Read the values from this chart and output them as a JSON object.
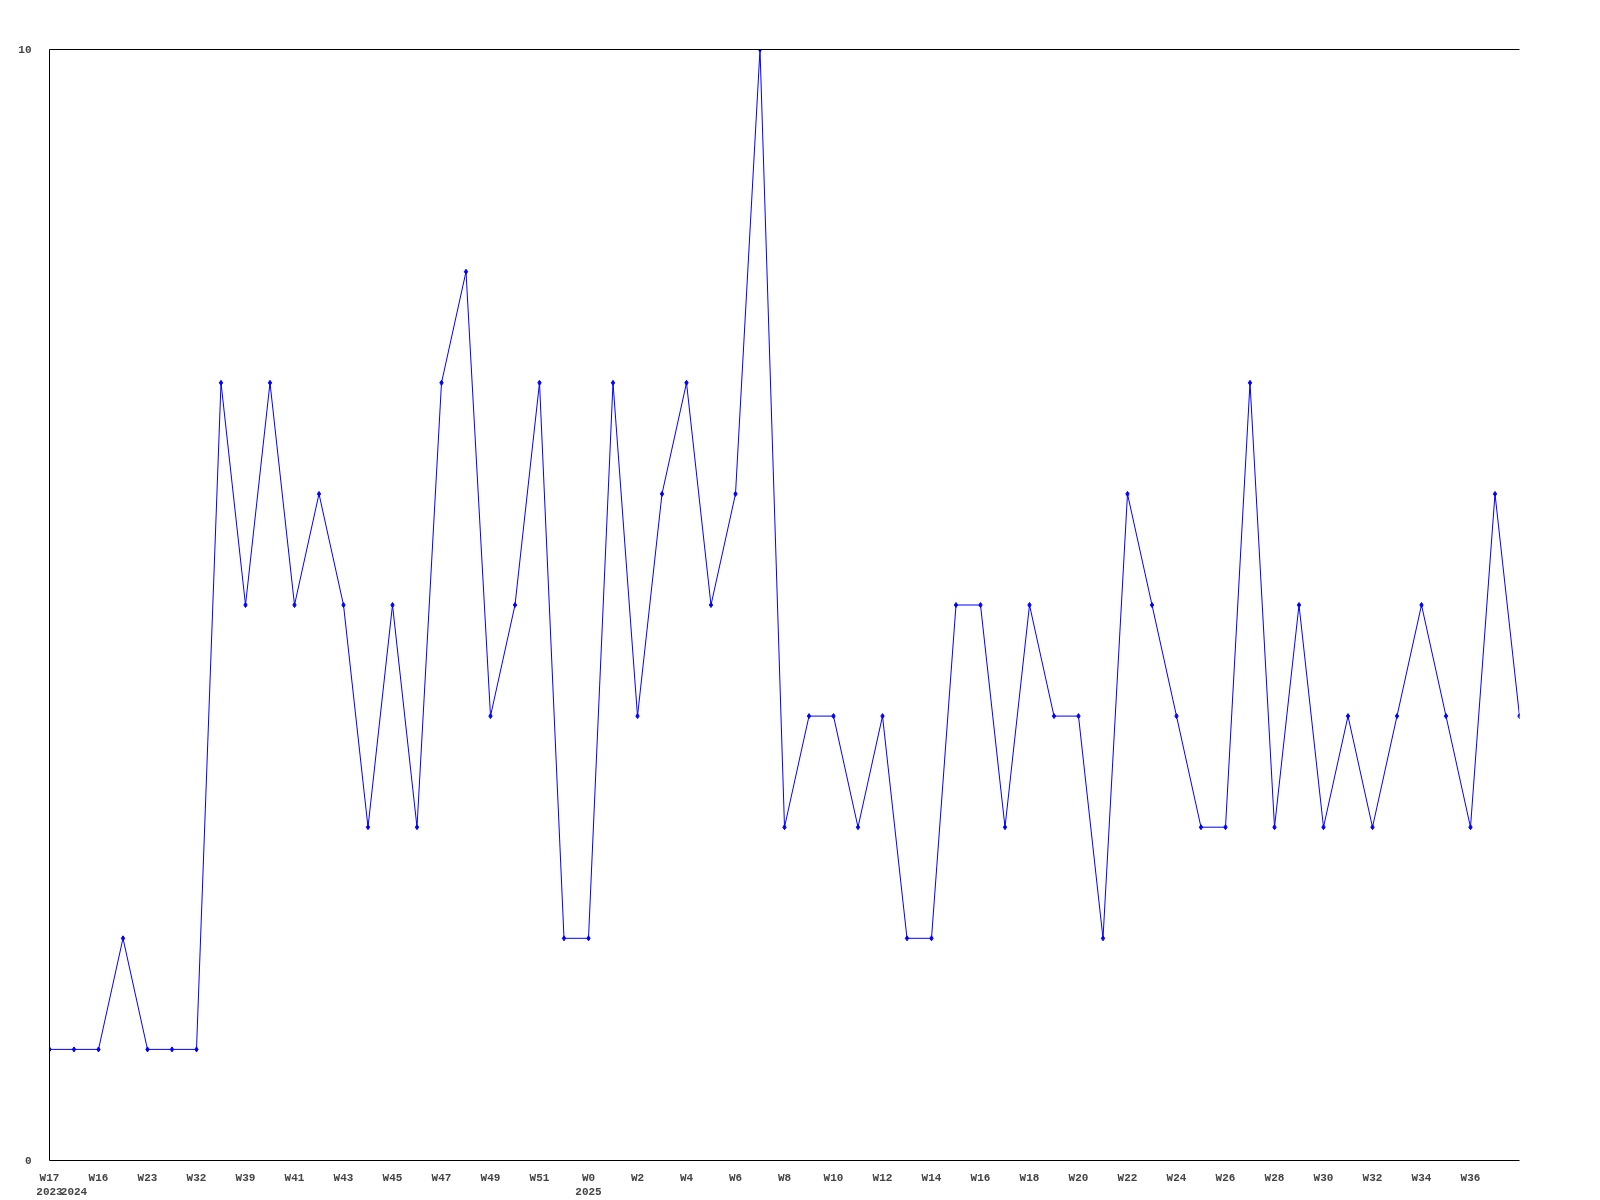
{
  "chart_data": {
    "type": "line",
    "marker": "diamond",
    "grid": false,
    "categories": [
      "W17\n2023",
      "\n2024",
      "W16",
      null,
      "W23",
      null,
      "W32",
      null,
      "W39",
      null,
      "W41",
      null,
      "W43",
      null,
      "W45",
      null,
      "W47",
      null,
      "W49",
      null,
      "W51",
      null,
      "W0\n2025",
      null,
      "W2",
      null,
      "W4",
      null,
      "W6",
      null,
      "W8",
      null,
      "W10",
      null,
      "W12",
      null,
      "W14",
      null,
      "W16",
      null,
      "W18",
      null,
      "W20",
      null,
      "W22",
      null,
      "W24",
      null,
      "W26",
      null,
      "W28",
      null,
      "W30",
      null,
      "W32",
      null,
      "W34",
      null,
      "W36",
      null,
      null
    ],
    "series": [
      {
        "color": "#0000ff",
        "values": [
          1,
          1,
          1,
          2,
          1,
          1,
          1,
          7,
          5,
          7,
          5,
          6,
          5,
          3,
          5,
          3,
          7,
          8,
          4,
          5,
          7,
          2,
          2,
          7,
          4,
          6,
          7,
          5,
          6,
          10,
          3,
          4,
          4,
          3,
          4,
          2,
          2,
          5,
          5,
          3,
          5,
          4,
          4,
          2,
          6,
          5,
          4,
          3,
          3,
          7,
          3,
          5,
          3,
          4,
          3,
          4,
          5,
          4,
          3,
          6,
          4
        ]
      }
    ],
    "ylim": [
      0,
      10
    ],
    "yticks": [
      0,
      10
    ]
  }
}
